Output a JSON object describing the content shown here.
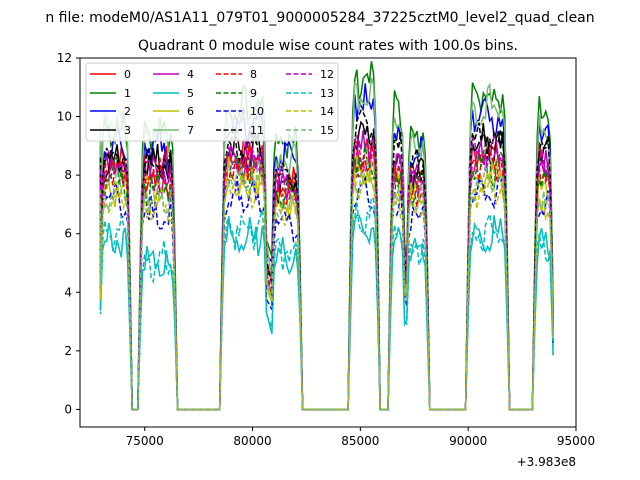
{
  "chart_data": {
    "type": "line",
    "suptitle": "n file: modeM0/AS1A11_079T01_9000005284_37225cztM0_level2_quad_clean",
    "title": "Quadrant 0 module wise count rates with 100.0s bins.",
    "xlabel": "",
    "ylabel": "",
    "x_offset_label": "+3.983e8",
    "xlim": [
      72000,
      95000
    ],
    "ylim": [
      -0.6,
      12
    ],
    "xticks": [
      75000,
      80000,
      85000,
      90000,
      95000
    ],
    "xtick_labels": [
      "75000",
      "80000",
      "85000",
      "90000",
      "95000"
    ],
    "yticks": [
      0,
      2,
      4,
      6,
      8,
      10,
      12
    ],
    "ytick_labels": [
      "0",
      "2",
      "4",
      "6",
      "8",
      "10",
      "12"
    ],
    "grid": false,
    "legend_position": "top-left",
    "legend_columns": 4,
    "intervals": [
      {
        "start": 72950,
        "end": 74300
      },
      {
        "start": 74800,
        "end": 76400
      },
      {
        "start": 78600,
        "end": 80650
      },
      {
        "start": 80900,
        "end": 82200
      },
      {
        "start": 84550,
        "end": 85800
      },
      {
        "start": 86400,
        "end": 87050
      },
      {
        "start": 87150,
        "end": 88100
      },
      {
        "start": 90000,
        "end": 91800
      },
      {
        "start": 93100,
        "end": 93900
      }
    ],
    "series": [
      {
        "name": "0",
        "color": "#ff0000",
        "dash": "solid",
        "levels": [
          8.4,
          8.3,
          8.6,
          7.6,
          8.6,
          7.8,
          7.7,
          8.6,
          8.4
        ]
      },
      {
        "name": "1",
        "color": "#008000",
        "dash": "solid",
        "levels": [
          9.6,
          9.5,
          10.3,
          9.1,
          11.2,
          10.4,
          9.4,
          10.7,
          10.1
        ]
      },
      {
        "name": "2",
        "color": "#0000ff",
        "dash": "solid",
        "levels": [
          9.0,
          9.0,
          9.7,
          8.7,
          10.5,
          9.8,
          8.8,
          10.0,
          9.5
        ]
      },
      {
        "name": "3",
        "color": "#000000",
        "dash": "solid",
        "levels": [
          8.5,
          8.4,
          8.9,
          7.8,
          9.4,
          8.7,
          8.2,
          9.0,
          8.7
        ]
      },
      {
        "name": "4",
        "color": "#bf00bf",
        "dash": "solid",
        "levels": [
          8.1,
          8.0,
          8.4,
          7.6,
          8.9,
          8.4,
          7.8,
          8.6,
          8.3
        ]
      },
      {
        "name": "5",
        "color": "#00bfbf",
        "dash": "solid",
        "levels": [
          5.8,
          5.0,
          6.0,
          5.2,
          6.3,
          5.8,
          5.4,
          6.0,
          5.6
        ]
      },
      {
        "name": "6",
        "color": "#bfbf00",
        "dash": "solid",
        "levels": [
          7.6,
          7.5,
          7.9,
          7.1,
          8.1,
          7.7,
          7.3,
          8.0,
          7.6
        ]
      },
      {
        "name": "7",
        "color": "#77b977",
        "dash": "solid",
        "levels": [
          9.7,
          9.3,
          9.9,
          8.5,
          10.6,
          9.9,
          9.0,
          10.3,
          9.6
        ]
      },
      {
        "name": "8",
        "color": "#ff0000",
        "dash": "dashed",
        "levels": [
          8.0,
          7.9,
          8.3,
          7.4,
          8.7,
          8.2,
          7.6,
          8.4,
          8.1
        ]
      },
      {
        "name": "9",
        "color": "#008000",
        "dash": "dashed",
        "levels": [
          7.9,
          7.7,
          8.2,
          7.3,
          8.5,
          8.0,
          7.5,
          8.3,
          8.0
        ]
      },
      {
        "name": "10",
        "color": "#0000ff",
        "dash": "dashed",
        "levels": [
          7.2,
          6.6,
          7.3,
          6.5,
          7.3,
          7.0,
          6.6,
          7.2,
          6.9
        ]
      },
      {
        "name": "11",
        "color": "#000000",
        "dash": "dashed",
        "levels": [
          8.6,
          8.5,
          9.0,
          8.0,
          9.6,
          8.9,
          8.3,
          9.2,
          8.8
        ]
      },
      {
        "name": "12",
        "color": "#bf00bf",
        "dash": "dashed",
        "levels": [
          8.2,
          8.1,
          8.5,
          7.6,
          8.8,
          8.3,
          7.8,
          8.6,
          8.2
        ]
      },
      {
        "name": "13",
        "color": "#00bfbf",
        "dash": "dashed",
        "levels": [
          5.9,
          5.0,
          6.2,
          5.3,
          6.5,
          5.8,
          5.5,
          6.1,
          5.7
        ]
      },
      {
        "name": "14",
        "color": "#bfbf00",
        "dash": "dashed",
        "levels": [
          7.2,
          7.0,
          7.5,
          6.9,
          7.8,
          7.3,
          7.0,
          7.6,
          7.2
        ]
      },
      {
        "name": "15",
        "color": "#77b977",
        "dash": "dashed",
        "levels": [
          7.5,
          7.3,
          7.8,
          7.0,
          8.0,
          7.6,
          7.2,
          7.8,
          7.4
        ]
      }
    ]
  }
}
